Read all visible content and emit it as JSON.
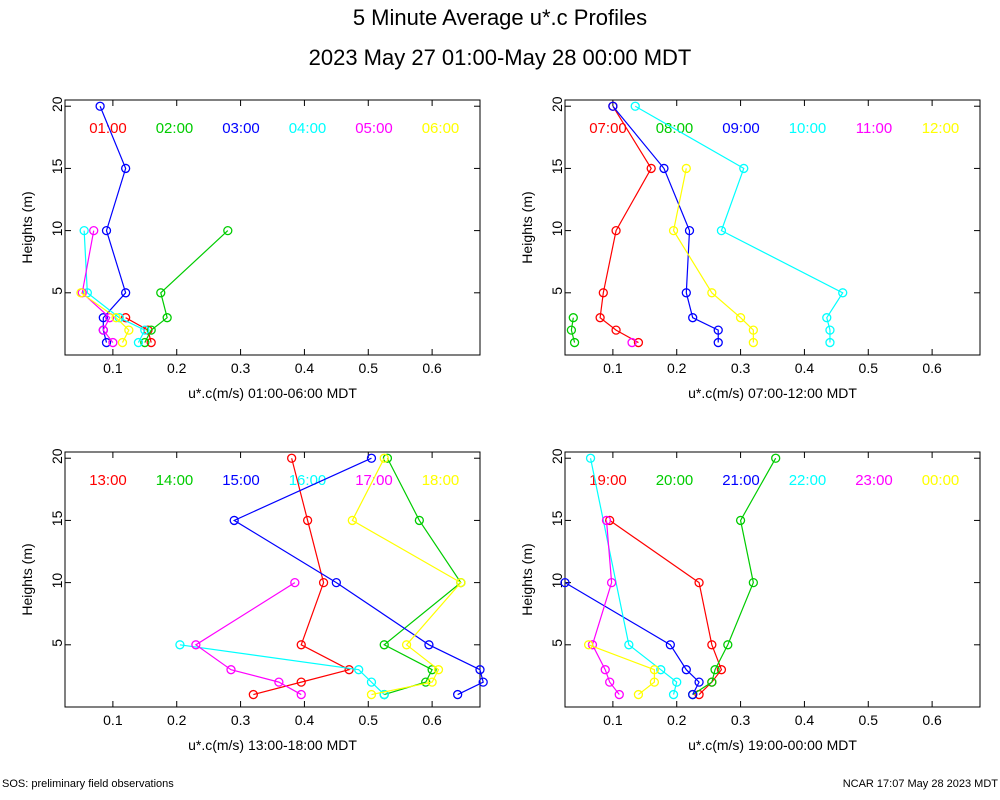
{
  "page": {
    "title": "5 Minute Average u*.c Profiles",
    "subtitle": "2023 May 27 01:00-May 28 00:00 MDT",
    "footer_left": "SOS: preliminary field observations",
    "footer_right": "NCAR 17:07 May 28 2023 MDT"
  },
  "chart_data": [
    {
      "type": "line",
      "title": "",
      "xlabel": "u*.c(m/s) 01:00-06:00 MDT",
      "ylabel": "Heights (m)",
      "xlim": [
        0.025,
        0.675
      ],
      "ylim": [
        0,
        20.5
      ],
      "xticks": [
        0.1,
        0.2,
        0.3,
        0.4,
        0.5,
        0.6
      ],
      "xtick_labels": [
        "0.1",
        "0.2",
        "0.3",
        "0.4",
        "0.5",
        "0.6"
      ],
      "yticks": [
        5,
        10,
        15,
        20
      ],
      "ytick_labels": [
        "5",
        "10",
        "15",
        "20"
      ],
      "heights": [
        1,
        2,
        3,
        5,
        10,
        15,
        20
      ],
      "series": [
        {
          "name": "01:00",
          "color": "#ff0000",
          "values": [
            0.16,
            0.155,
            0.12,
            null,
            null,
            null,
            null
          ]
        },
        {
          "name": "02:00",
          "color": "#00cc00",
          "values": [
            0.15,
            0.16,
            0.185,
            0.175,
            0.28,
            null,
            null
          ]
        },
        {
          "name": "03:00",
          "color": "#0000ff",
          "values": [
            0.09,
            0.085,
            0.085,
            0.12,
            0.09,
            0.12,
            0.08
          ]
        },
        {
          "name": "04:00",
          "color": "#00ffff",
          "values": [
            0.14,
            0.15,
            0.11,
            0.06,
            0.055,
            null,
            null
          ]
        },
        {
          "name": "05:00",
          "color": "#ff00ff",
          "values": [
            0.1,
            0.085,
            0.095,
            0.052,
            0.07,
            null,
            null
          ]
        },
        {
          "name": "06:00",
          "color": "#ffff00",
          "values": [
            0.115,
            0.125,
            0.105,
            0.05,
            null,
            null,
            null
          ]
        }
      ]
    },
    {
      "type": "line",
      "title": "",
      "xlabel": "u*.c(m/s) 07:00-12:00 MDT",
      "ylabel": "Heights (m)",
      "xlim": [
        0.025,
        0.675
      ],
      "ylim": [
        0,
        20.5
      ],
      "xticks": [
        0.1,
        0.2,
        0.3,
        0.4,
        0.5,
        0.6
      ],
      "xtick_labels": [
        "0.1",
        "0.2",
        "0.3",
        "0.4",
        "0.5",
        "0.6"
      ],
      "yticks": [
        5,
        10,
        15,
        20
      ],
      "ytick_labels": [
        "5",
        "10",
        "15",
        "20"
      ],
      "heights": [
        1,
        2,
        3,
        5,
        10,
        15,
        20
      ],
      "series": [
        {
          "name": "07:00",
          "color": "#ff0000",
          "values": [
            0.14,
            0.105,
            0.08,
            0.085,
            0.105,
            0.16,
            0.1
          ]
        },
        {
          "name": "08:00",
          "color": "#00cc00",
          "values": [
            0.04,
            0.035,
            0.038,
            null,
            null,
            null,
            null
          ]
        },
        {
          "name": "09:00",
          "color": "#0000ff",
          "values": [
            0.265,
            0.265,
            0.225,
            0.215,
            0.22,
            0.18,
            0.1
          ]
        },
        {
          "name": "10:00",
          "color": "#00ffff",
          "values": [
            0.44,
            0.44,
            0.435,
            0.46,
            0.27,
            0.305,
            0.135
          ]
        },
        {
          "name": "11:00",
          "color": "#ff00ff",
          "values": [
            0.13,
            null,
            null,
            null,
            null,
            null,
            null
          ]
        },
        {
          "name": "12:00",
          "color": "#ffff00",
          "values": [
            0.32,
            0.32,
            0.3,
            0.255,
            0.195,
            0.215,
            null
          ]
        }
      ]
    },
    {
      "type": "line",
      "title": "",
      "xlabel": "u*.c(m/s) 13:00-18:00 MDT",
      "ylabel": "Heights (m)",
      "xlim": [
        0.025,
        0.675
      ],
      "ylim": [
        0,
        20.5
      ],
      "xticks": [
        0.1,
        0.2,
        0.3,
        0.4,
        0.5,
        0.6
      ],
      "xtick_labels": [
        "0.1",
        "0.2",
        "0.3",
        "0.4",
        "0.5",
        "0.6"
      ],
      "yticks": [
        5,
        10,
        15,
        20
      ],
      "ytick_labels": [
        "5",
        "10",
        "15",
        "20"
      ],
      "heights": [
        1,
        2,
        3,
        5,
        10,
        15,
        20
      ],
      "series": [
        {
          "name": "13:00",
          "color": "#ff0000",
          "values": [
            0.32,
            0.395,
            0.47,
            0.395,
            0.43,
            0.405,
            0.38
          ]
        },
        {
          "name": "14:00",
          "color": "#00cc00",
          "values": [
            0.525,
            0.59,
            0.6,
            0.525,
            0.645,
            0.58,
            0.53
          ]
        },
        {
          "name": "15:00",
          "color": "#0000ff",
          "values": [
            0.64,
            0.68,
            0.675,
            0.595,
            0.45,
            0.29,
            0.505
          ]
        },
        {
          "name": "16:00",
          "color": "#00ffff",
          "values": [
            0.525,
            0.505,
            0.485,
            0.205,
            null,
            null,
            null
          ]
        },
        {
          "name": "17:00",
          "color": "#ff00ff",
          "values": [
            0.395,
            0.36,
            0.285,
            0.23,
            0.385,
            null,
            null
          ]
        },
        {
          "name": "18:00",
          "color": "#ffff00",
          "values": [
            0.505,
            0.6,
            0.61,
            0.56,
            0.645,
            0.475,
            0.525
          ]
        }
      ]
    },
    {
      "type": "line",
      "title": "",
      "xlabel": "u*.c(m/s) 19:00-00:00 MDT",
      "ylabel": "Heights (m)",
      "xlim": [
        0.025,
        0.675
      ],
      "ylim": [
        0,
        20.5
      ],
      "xticks": [
        0.1,
        0.2,
        0.3,
        0.4,
        0.5,
        0.6
      ],
      "xtick_labels": [
        "0.1",
        "0.2",
        "0.3",
        "0.4",
        "0.5",
        "0.6"
      ],
      "yticks": [
        5,
        10,
        15,
        20
      ],
      "ytick_labels": [
        "5",
        "10",
        "15",
        "20"
      ],
      "heights": [
        1,
        2,
        3,
        5,
        10,
        15,
        20
      ],
      "series": [
        {
          "name": "19:00",
          "color": "#ff0000",
          "values": [
            0.235,
            0.255,
            0.27,
            0.255,
            0.235,
            0.095,
            null
          ]
        },
        {
          "name": "20:00",
          "color": "#00cc00",
          "values": [
            0.225,
            0.255,
            0.26,
            0.28,
            0.32,
            0.3,
            0.355
          ]
        },
        {
          "name": "21:00",
          "color": "#0000ff",
          "values": [
            0.225,
            0.235,
            0.215,
            0.19,
            0.025,
            null,
            null
          ]
        },
        {
          "name": "22:00",
          "color": "#00ffff",
          "values": [
            0.195,
            0.2,
            0.175,
            0.125,
            null,
            null,
            0.065
          ]
        },
        {
          "name": "23:00",
          "color": "#ff00ff",
          "values": [
            0.11,
            0.095,
            0.088,
            0.068,
            0.098,
            0.09,
            null
          ]
        },
        {
          "name": "00:00",
          "color": "#ffff00",
          "values": [
            0.14,
            0.165,
            0.165,
            0.062,
            null,
            null,
            null
          ]
        }
      ]
    }
  ]
}
